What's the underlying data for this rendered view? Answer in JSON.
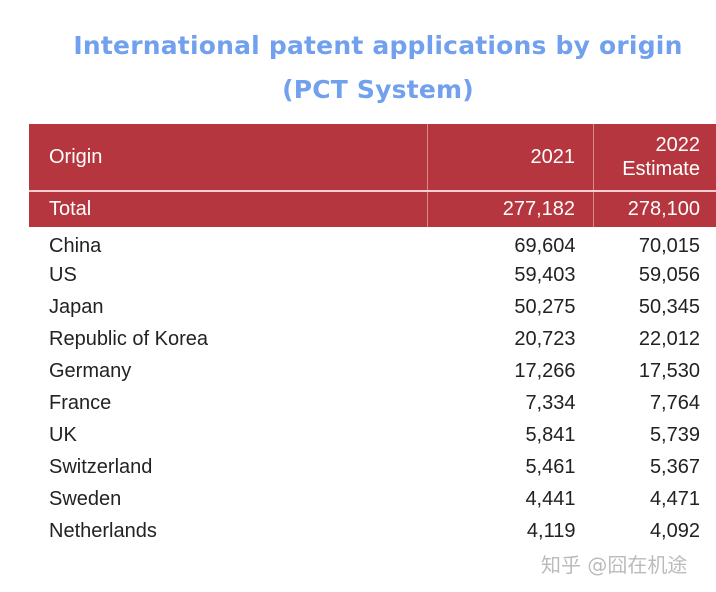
{
  "title": "International patent applications by origin (PCT System)",
  "table": {
    "header_color": "#b5363f",
    "columns": [
      "Origin",
      "2021",
      "2022 Estimate"
    ],
    "total": {
      "origin": "Total",
      "y2021": "277,182",
      "y2022": "278,100"
    },
    "rows": [
      {
        "origin": "China",
        "y2021": "69,604",
        "y2022": "70,015"
      },
      {
        "origin": "US",
        "y2021": "59,403",
        "y2022": "59,056"
      },
      {
        "origin": "Japan",
        "y2021": "50,275",
        "y2022": "50,345"
      },
      {
        "origin": "Republic of Korea",
        "y2021": "20,723",
        "y2022": "22,012"
      },
      {
        "origin": "Germany",
        "y2021": "17,266",
        "y2022": "17,530"
      },
      {
        "origin": "France",
        "y2021": "7,334",
        "y2022": "7,764"
      },
      {
        "origin": "UK",
        "y2021": "5,841",
        "y2022": "5,739"
      },
      {
        "origin": "Switzerland",
        "y2021": "5,461",
        "y2022": "5,367"
      },
      {
        "origin": "Sweden",
        "y2021": "4,441",
        "y2022": "4,471"
      },
      {
        "origin": "Netherlands",
        "y2021": "4,119",
        "y2022": "4,092"
      }
    ]
  },
  "watermark": "知乎 @囧在机途"
}
